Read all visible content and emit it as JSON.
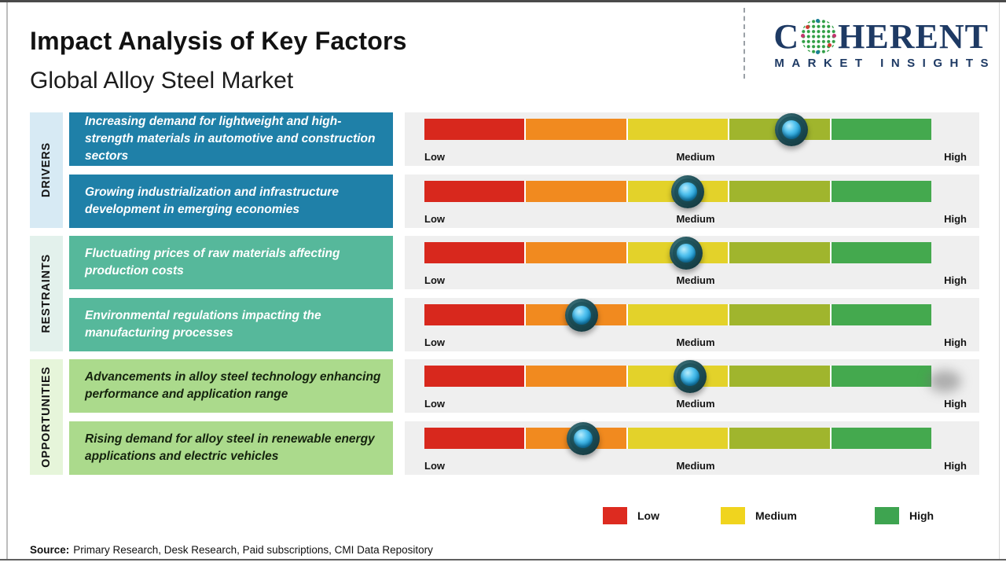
{
  "header": {
    "title": "Impact Analysis of Key Factors",
    "subtitle": "Global Alloy Steel Market"
  },
  "logo": {
    "name_start": "C",
    "name_end": "HERENT",
    "tagline": "MARKET INSIGHTS"
  },
  "labels": {
    "low": "Low",
    "medium": "Medium",
    "high": "High"
  },
  "groups": [
    {
      "category": "DRIVERS",
      "factors": [
        {
          "text": "Increasing demand for lightweight and high-strength materials in automotive and construction sectors",
          "slider_position_pct": 72.4
        },
        {
          "text": "Growing industrialization and infrastructure development in emerging economies",
          "slider_position_pct": 51.9
        }
      ]
    },
    {
      "category": "RESTRAINTS",
      "factors": [
        {
          "text": "Fluctuating prices of raw materials affecting production costs",
          "slider_position_pct": 51.6
        },
        {
          "text": "Environmental regulations impacting the manufacturing processes",
          "slider_position_pct": 31.0
        }
      ]
    },
    {
      "category": "OPPORTUNITIES",
      "factors": [
        {
          "text": "Advancements in alloy steel technology enhancing performance and application range",
          "slider_position_pct": 52.4
        },
        {
          "text": "Rising demand for alloy steel in renewable energy applications and electric vehicles",
          "slider_position_pct": 31.3
        }
      ]
    }
  ],
  "source": {
    "label": "Source:",
    "text": "Primary Research, Desk Research, Paid subscriptions, CMI Data Repository"
  },
  "colors": {
    "accent_navy": "#1e3a64",
    "seg_red": "#d8281d",
    "seg_orange": "#f18a1f",
    "seg_yellow": "#e3d22a",
    "seg_olive": "#a0b52d",
    "seg_green": "#44a94e",
    "legend_red": "#dd2b20",
    "legend_yellow": "#f0d41e",
    "legend_green": "#3ea450",
    "drivers_box": "#1f80a8",
    "drivers_col": "#d7eaf4",
    "restraints_box": "#56b89b",
    "restraints_col": "#e3f1ec",
    "opportunities_box": "#abda8c",
    "opportunities_col": "#e6f5da",
    "panel_gray": "#efefef"
  }
}
